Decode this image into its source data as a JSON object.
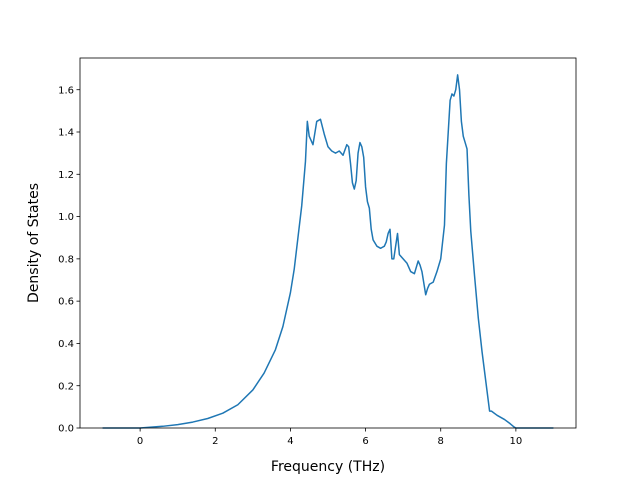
{
  "chart_data": {
    "type": "line",
    "title": "",
    "xlabel": "Frequency (THz)",
    "ylabel": "Density of States",
    "xlim": [
      -1.6,
      11.6
    ],
    "ylim": [
      0.0,
      1.75
    ],
    "xticks": [
      0,
      2,
      4,
      6,
      8,
      10
    ],
    "xtick_labels": [
      "0",
      "2",
      "4",
      "6",
      "8",
      "10"
    ],
    "yticks": [
      0.0,
      0.2,
      0.4,
      0.6,
      0.8,
      1.0,
      1.2,
      1.4,
      1.6
    ],
    "ytick_labels": [
      "0.0",
      "0.2",
      "0.4",
      "0.6",
      "0.8",
      "1.0",
      "1.2",
      "1.4",
      "1.6"
    ],
    "grid": false,
    "legend": "none",
    "series": [
      {
        "color": "#1f77b4",
        "x": [
          -1.0,
          -0.5,
          0.0,
          0.3,
          0.6,
          1.0,
          1.4,
          1.8,
          2.2,
          2.6,
          3.0,
          3.3,
          3.6,
          3.8,
          4.0,
          4.1,
          4.2,
          4.3,
          4.4,
          4.45,
          4.5,
          4.6,
          4.7,
          4.8,
          4.9,
          5.0,
          5.1,
          5.2,
          5.3,
          5.4,
          5.5,
          5.55,
          5.6,
          5.65,
          5.7,
          5.75,
          5.8,
          5.85,
          5.9,
          5.95,
          6.0,
          6.05,
          6.1,
          6.15,
          6.2,
          6.3,
          6.4,
          6.5,
          6.55,
          6.6,
          6.65,
          6.7,
          6.75,
          6.8,
          6.85,
          6.9,
          7.0,
          7.1,
          7.2,
          7.3,
          7.4,
          7.45,
          7.5,
          7.6,
          7.65,
          7.7,
          7.8,
          7.9,
          8.0,
          8.1,
          8.15,
          8.2,
          8.25,
          8.3,
          8.35,
          8.4,
          8.45,
          8.5,
          8.55,
          8.6,
          8.65,
          8.7,
          8.75,
          8.8,
          8.9,
          9.0,
          9.1,
          9.2,
          9.3,
          9.35,
          9.5,
          9.7,
          9.85,
          9.95,
          10.0,
          10.5,
          11.0
        ],
        "y": [
          0.0,
          0.0,
          0.0,
          0.004,
          0.008,
          0.016,
          0.028,
          0.045,
          0.07,
          0.11,
          0.18,
          0.26,
          0.37,
          0.48,
          0.64,
          0.75,
          0.9,
          1.05,
          1.26,
          1.45,
          1.38,
          1.34,
          1.45,
          1.46,
          1.39,
          1.33,
          1.31,
          1.3,
          1.31,
          1.29,
          1.34,
          1.33,
          1.25,
          1.16,
          1.13,
          1.17,
          1.3,
          1.35,
          1.33,
          1.28,
          1.14,
          1.07,
          1.04,
          0.94,
          0.89,
          0.86,
          0.85,
          0.86,
          0.88,
          0.92,
          0.94,
          0.8,
          0.8,
          0.86,
          0.92,
          0.82,
          0.8,
          0.78,
          0.74,
          0.73,
          0.79,
          0.77,
          0.74,
          0.63,
          0.66,
          0.68,
          0.69,
          0.74,
          0.8,
          0.96,
          1.25,
          1.4,
          1.55,
          1.58,
          1.57,
          1.6,
          1.67,
          1.6,
          1.45,
          1.38,
          1.35,
          1.32,
          1.1,
          0.93,
          0.72,
          0.52,
          0.36,
          0.22,
          0.08,
          0.08,
          0.06,
          0.04,
          0.02,
          0.005,
          0.0,
          0.0,
          0.0
        ]
      }
    ]
  }
}
